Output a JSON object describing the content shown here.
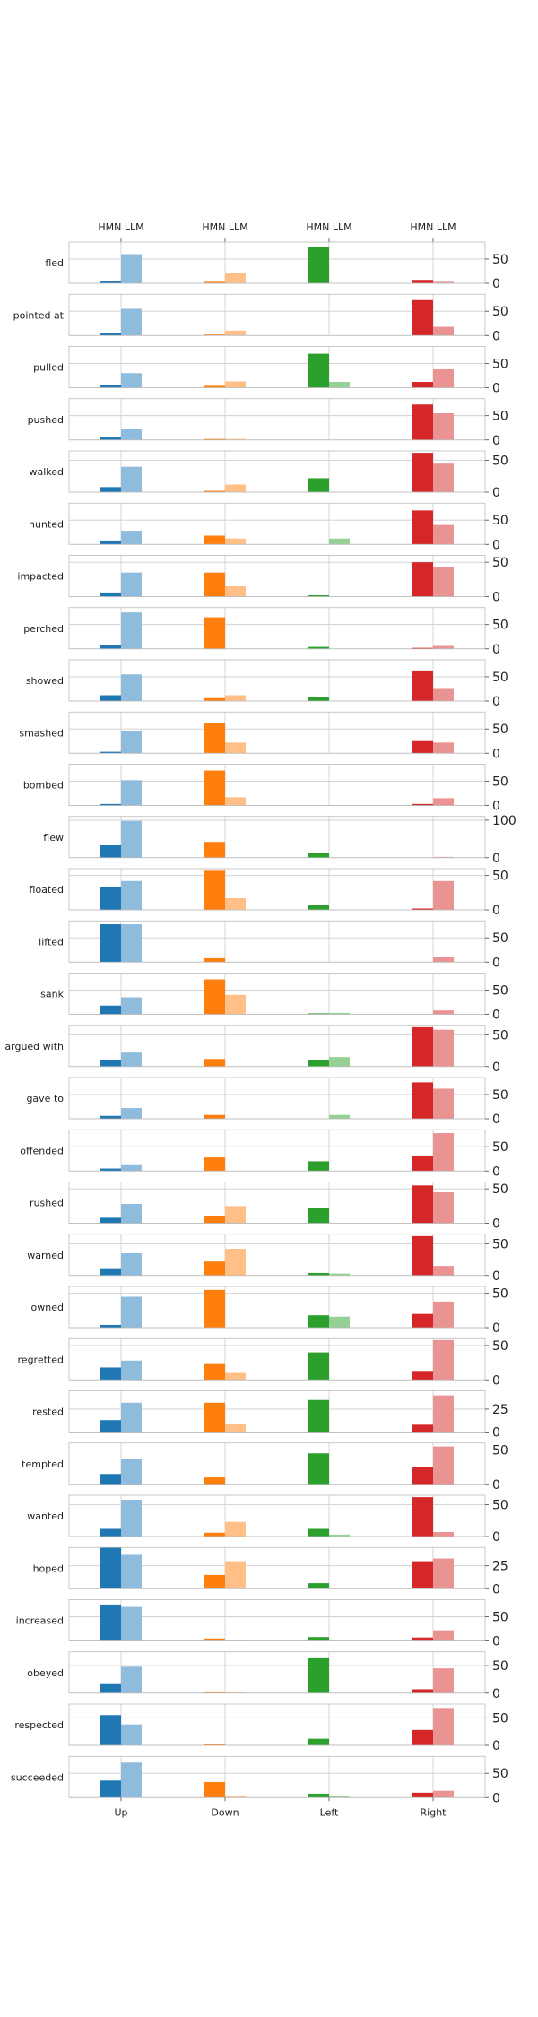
{
  "chart_data": {
    "type": "bar",
    "categories": [
      "Up",
      "Down",
      "Left",
      "Right"
    ],
    "top_tick_labels": [
      "HMN LLM",
      "HMN LLM",
      "HMN LLM",
      "HMN LLM"
    ],
    "series": [
      {
        "name": "HMN"
      },
      {
        "name": "LLM"
      }
    ],
    "colors": {
      "hmn": [
        "#1f77b4",
        "#ff7f0e",
        "#2ca02c",
        "#d62728"
      ],
      "llm": [
        "#8fbbdc",
        "#ffbf86",
        "#95d095",
        "#ea9393"
      ]
    },
    "grid": true,
    "rows": [
      {
        "label": "fled",
        "ylim": [
          0,
          85
        ],
        "yticks": [
          "0",
          "50"
        ],
        "hmn": [
          5,
          3,
          75,
          7
        ],
        "llm": [
          60,
          22,
          0,
          3
        ]
      },
      {
        "label": "pointed at",
        "ylim": [
          0,
          85
        ],
        "yticks": [
          "0",
          "50"
        ],
        "hmn": [
          5,
          2,
          0,
          73
        ],
        "llm": [
          55,
          10,
          0,
          18
        ]
      },
      {
        "label": "pulled",
        "ylim": [
          0,
          85
        ],
        "yticks": [
          "0",
          "50"
        ],
        "hmn": [
          5,
          4,
          70,
          12
        ],
        "llm": [
          30,
          13,
          12,
          38
        ]
      },
      {
        "label": "pushed",
        "ylim": [
          0,
          85
        ],
        "yticks": [
          "0",
          "50"
        ],
        "hmn": [
          5,
          2,
          0,
          73
        ],
        "llm": [
          22,
          2,
          0,
          55
        ]
      },
      {
        "label": "walked",
        "ylim": [
          0,
          65
        ],
        "yticks": [
          "0",
          "50"
        ],
        "hmn": [
          8,
          2,
          22,
          62
        ],
        "llm": [
          40,
          12,
          0,
          45
        ]
      },
      {
        "label": "hunted",
        "ylim": [
          0,
          85
        ],
        "yticks": [
          "0",
          "50"
        ],
        "hmn": [
          8,
          18,
          0,
          70
        ],
        "llm": [
          28,
          12,
          12,
          40
        ]
      },
      {
        "label": "impacted",
        "ylim": [
          0,
          60
        ],
        "yticks": [
          "0",
          "50"
        ],
        "hmn": [
          6,
          35,
          2,
          50
        ],
        "llm": [
          35,
          15,
          0,
          43
        ]
      },
      {
        "label": "perched",
        "ylim": [
          0,
          85
        ],
        "yticks": [
          "0",
          "50"
        ],
        "hmn": [
          8,
          65,
          4,
          2
        ],
        "llm": [
          75,
          0,
          0,
          6
        ]
      },
      {
        "label": "showed",
        "ylim": [
          0,
          85
        ],
        "yticks": [
          "0",
          "50"
        ],
        "hmn": [
          12,
          6,
          8,
          63
        ],
        "llm": [
          55,
          12,
          0,
          25
        ]
      },
      {
        "label": "smashed",
        "ylim": [
          0,
          85
        ],
        "yticks": [
          "0",
          "50"
        ],
        "hmn": [
          3,
          62,
          0,
          25
        ],
        "llm": [
          45,
          22,
          0,
          22
        ]
      },
      {
        "label": "bombed",
        "ylim": [
          0,
          85
        ],
        "yticks": [
          "0",
          "50"
        ],
        "hmn": [
          3,
          72,
          0,
          3
        ],
        "llm": [
          52,
          17,
          0,
          15
        ]
      },
      {
        "label": "flew",
        "ylim": [
          0,
          110
        ],
        "yticks": [
          "0",
          "100"
        ],
        "hmn": [
          33,
          42,
          12,
          0
        ],
        "llm": [
          98,
          0,
          0,
          2
        ]
      },
      {
        "label": "floated",
        "ylim": [
          0,
          60
        ],
        "yticks": [
          "0",
          "50"
        ],
        "hmn": [
          33,
          57,
          7,
          2
        ],
        "llm": [
          42,
          17,
          0,
          42
        ]
      },
      {
        "label": "lifted",
        "ylim": [
          0,
          85
        ],
        "yticks": [
          "0",
          "50"
        ],
        "hmn": [
          78,
          8,
          0,
          0
        ],
        "llm": [
          78,
          0,
          0,
          10
        ]
      },
      {
        "label": "sank",
        "ylim": [
          0,
          85
        ],
        "yticks": [
          "0",
          "50"
        ],
        "hmn": [
          18,
          72,
          2,
          0
        ],
        "llm": [
          35,
          40,
          3,
          8
        ]
      },
      {
        "label": "argued with",
        "ylim": [
          0,
          65
        ],
        "yticks": [
          "0",
          "50"
        ],
        "hmn": [
          10,
          12,
          10,
          62
        ],
        "llm": [
          22,
          0,
          15,
          58
        ]
      },
      {
        "label": "gave to",
        "ylim": [
          0,
          85
        ],
        "yticks": [
          "0",
          "50"
        ],
        "hmn": [
          6,
          8,
          0,
          75
        ],
        "llm": [
          22,
          0,
          8,
          62
        ]
      },
      {
        "label": "offended",
        "ylim": [
          0,
          85
        ],
        "yticks": [
          "0",
          "50"
        ],
        "hmn": [
          5,
          28,
          20,
          32
        ],
        "llm": [
          12,
          0,
          0,
          78
        ]
      },
      {
        "label": "rushed",
        "ylim": [
          0,
          60
        ],
        "yticks": [
          "0",
          "50"
        ],
        "hmn": [
          8,
          10,
          22,
          55
        ],
        "llm": [
          28,
          25,
          0,
          45
        ]
      },
      {
        "label": "warned",
        "ylim": [
          0,
          65
        ],
        "yticks": [
          "0",
          "50"
        ],
        "hmn": [
          10,
          22,
          4,
          62
        ],
        "llm": [
          35,
          42,
          3,
          15
        ]
      },
      {
        "label": "owned",
        "ylim": [
          0,
          60
        ],
        "yticks": [
          "0",
          "50"
        ],
        "hmn": [
          4,
          55,
          18,
          20
        ],
        "llm": [
          45,
          0,
          16,
          38
        ]
      },
      {
        "label": "regretted",
        "ylim": [
          0,
          60
        ],
        "yticks": [
          "0",
          "50"
        ],
        "hmn": [
          18,
          23,
          40,
          13
        ],
        "llm": [
          28,
          10,
          0,
          58
        ]
      },
      {
        "label": "rested",
        "ylim": [
          0,
          45
        ],
        "yticks": [
          "0",
          "25"
        ],
        "hmn": [
          13,
          32,
          35,
          8
        ],
        "llm": [
          32,
          9,
          0,
          40
        ]
      },
      {
        "label": "tempted",
        "ylim": [
          0,
          60
        ],
        "yticks": [
          "0",
          "50"
        ],
        "hmn": [
          15,
          10,
          45,
          25
        ],
        "llm": [
          37,
          0,
          0,
          55
        ]
      },
      {
        "label": "wanted",
        "ylim": [
          0,
          65
        ],
        "yticks": [
          "0",
          "50"
        ],
        "hmn": [
          12,
          6,
          12,
          62
        ],
        "llm": [
          58,
          23,
          3,
          7
        ]
      },
      {
        "label": "hoped",
        "ylim": [
          0,
          45
        ],
        "yticks": [
          "0",
          "25"
        ],
        "hmn": [
          45,
          15,
          6,
          30
        ],
        "llm": [
          37,
          30,
          0,
          33
        ]
      },
      {
        "label": "increased",
        "ylim": [
          0,
          85
        ],
        "yticks": [
          "0",
          "50"
        ],
        "hmn": [
          75,
          5,
          8,
          7
        ],
        "llm": [
          70,
          2,
          0,
          22
        ]
      },
      {
        "label": "obeyed",
        "ylim": [
          0,
          75
        ],
        "yticks": [
          "0",
          "50"
        ],
        "hmn": [
          18,
          3,
          65,
          7
        ],
        "llm": [
          48,
          3,
          0,
          45
        ]
      },
      {
        "label": "respected",
        "ylim": [
          0,
          75
        ],
        "yticks": [
          "0",
          "50"
        ],
        "hmn": [
          55,
          2,
          12,
          28
        ],
        "llm": [
          38,
          0,
          0,
          68
        ]
      },
      {
        "label": "succeeded",
        "ylim": [
          0,
          85
        ],
        "yticks": [
          "0",
          "50"
        ],
        "hmn": [
          35,
          32,
          8,
          10
        ],
        "llm": [
          72,
          3,
          3,
          14
        ]
      }
    ]
  }
}
